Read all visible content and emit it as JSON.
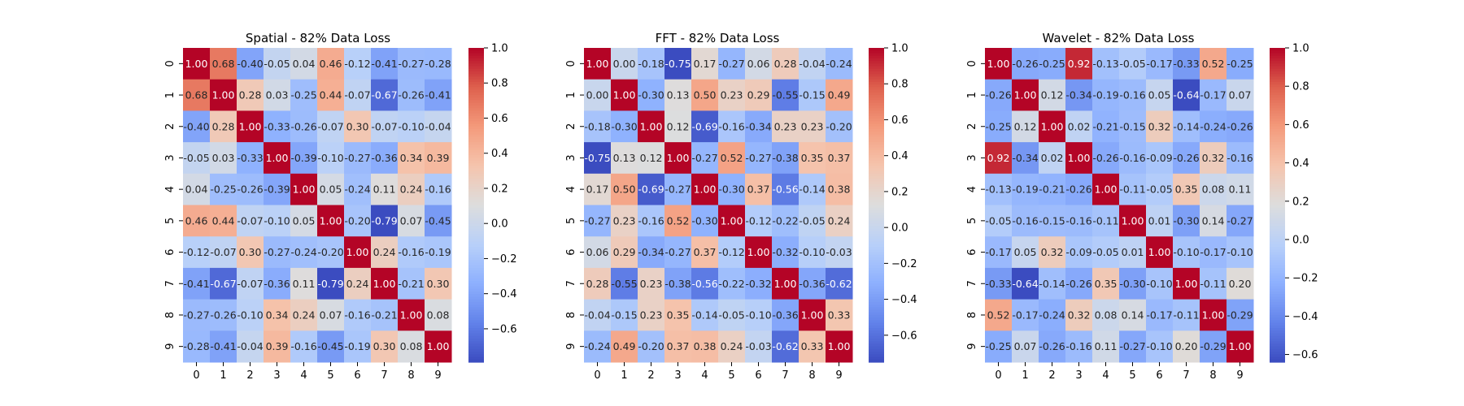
{
  "chart_data": [
    {
      "type": "heatmap",
      "title": "Spatial - 82% Data Loss",
      "x": [
        "0",
        "1",
        "2",
        "3",
        "4",
        "5",
        "6",
        "7",
        "8",
        "9"
      ],
      "y": [
        "0",
        "1",
        "2",
        "3",
        "4",
        "5",
        "6",
        "7",
        "8",
        "9"
      ],
      "values": [
        [
          1.0,
          0.68,
          -0.4,
          -0.05,
          0.04,
          0.46,
          -0.12,
          -0.41,
          -0.27,
          -0.28
        ],
        [
          0.68,
          1.0,
          0.28,
          0.03,
          -0.25,
          0.44,
          -0.07,
          -0.67,
          -0.26,
          -0.41
        ],
        [
          -0.4,
          0.28,
          1.0,
          -0.33,
          -0.26,
          -0.07,
          0.3,
          -0.07,
          -0.1,
          -0.04
        ],
        [
          -0.05,
          0.03,
          -0.33,
          1.0,
          -0.39,
          -0.1,
          -0.27,
          -0.36,
          0.34,
          0.39
        ],
        [
          0.04,
          -0.25,
          -0.26,
          -0.39,
          1.0,
          0.05,
          -0.24,
          0.11,
          0.24,
          -0.16
        ],
        [
          0.46,
          0.44,
          -0.07,
          -0.1,
          0.05,
          1.0,
          -0.2,
          -0.79,
          0.07,
          -0.45
        ],
        [
          -0.12,
          -0.07,
          0.3,
          -0.27,
          -0.24,
          -0.2,
          1.0,
          0.24,
          -0.16,
          -0.19
        ],
        [
          -0.41,
          -0.67,
          -0.07,
          -0.36,
          0.11,
          -0.79,
          0.24,
          1.0,
          -0.21,
          0.3
        ],
        [
          -0.27,
          -0.26,
          -0.1,
          0.34,
          0.24,
          0.07,
          -0.16,
          -0.21,
          1.0,
          0.08
        ],
        [
          -0.28,
          -0.41,
          -0.04,
          0.39,
          -0.16,
          -0.45,
          -0.19,
          0.3,
          0.08,
          1.0
        ]
      ],
      "colorbar": {
        "vmin": -0.79,
        "vmax": 1.0,
        "ticks": [
          -0.6,
          -0.4,
          -0.2,
          0.0,
          0.2,
          0.4,
          0.6,
          0.8,
          1.0
        ],
        "tick_labels": [
          "−0.6",
          "−0.4",
          "−0.2",
          "0.0",
          "0.2",
          "0.4",
          "0.6",
          "0.8",
          "1.0"
        ]
      },
      "colormap": "coolwarm",
      "annotation_format": "2 decimals"
    },
    {
      "type": "heatmap",
      "title": "FFT - 82% Data Loss",
      "x": [
        "0",
        "1",
        "2",
        "3",
        "4",
        "5",
        "6",
        "7",
        "8",
        "9"
      ],
      "y": [
        "0",
        "1",
        "2",
        "3",
        "4",
        "5",
        "6",
        "7",
        "8",
        "9"
      ],
      "values": [
        [
          1.0,
          0.0,
          -0.18,
          -0.75,
          0.17,
          -0.27,
          0.06,
          0.28,
          -0.04,
          -0.24
        ],
        [
          0.0,
          1.0,
          -0.3,
          0.13,
          0.5,
          0.23,
          0.29,
          -0.55,
          -0.15,
          0.49
        ],
        [
          -0.18,
          -0.3,
          1.0,
          0.12,
          -0.69,
          -0.16,
          -0.34,
          0.23,
          0.23,
          -0.2
        ],
        [
          -0.75,
          0.13,
          0.12,
          1.0,
          -0.27,
          0.52,
          -0.27,
          -0.38,
          0.35,
          0.37
        ],
        [
          0.17,
          0.5,
          -0.69,
          -0.27,
          1.0,
          -0.3,
          0.37,
          -0.56,
          -0.14,
          0.38
        ],
        [
          -0.27,
          0.23,
          -0.16,
          0.52,
          -0.3,
          1.0,
          -0.12,
          -0.22,
          -0.05,
          0.24
        ],
        [
          0.06,
          0.29,
          -0.34,
          -0.27,
          0.37,
          -0.12,
          1.0,
          -0.32,
          -0.1,
          -0.03
        ],
        [
          0.28,
          -0.55,
          0.23,
          -0.38,
          -0.56,
          -0.22,
          -0.32,
          1.0,
          -0.36,
          -0.62
        ],
        [
          -0.04,
          -0.15,
          0.23,
          0.35,
          -0.14,
          -0.05,
          -0.1,
          -0.36,
          1.0,
          0.33
        ],
        [
          -0.24,
          0.49,
          -0.2,
          0.37,
          0.38,
          0.24,
          -0.03,
          -0.62,
          0.33,
          1.0
        ]
      ],
      "colorbar": {
        "vmin": -0.75,
        "vmax": 1.0,
        "ticks": [
          -0.6,
          -0.4,
          -0.2,
          0.0,
          0.2,
          0.4,
          0.6,
          0.8,
          1.0
        ],
        "tick_labels": [
          "−0.6",
          "−0.4",
          "−0.2",
          "0.0",
          "0.2",
          "0.4",
          "0.6",
          "0.8",
          "1.0"
        ]
      },
      "colormap": "coolwarm",
      "annotation_format": "2 decimals"
    },
    {
      "type": "heatmap",
      "title": "Wavelet - 82% Data Loss",
      "x": [
        "0",
        "1",
        "2",
        "3",
        "4",
        "5",
        "6",
        "7",
        "8",
        "9"
      ],
      "y": [
        "0",
        "1",
        "2",
        "3",
        "4",
        "5",
        "6",
        "7",
        "8",
        "9"
      ],
      "values": [
        [
          1.0,
          -0.26,
          -0.25,
          0.92,
          -0.13,
          -0.05,
          -0.17,
          -0.33,
          0.52,
          -0.25
        ],
        [
          -0.26,
          1.0,
          0.12,
          -0.34,
          -0.19,
          -0.16,
          0.05,
          -0.64,
          -0.17,
          0.07
        ],
        [
          -0.25,
          0.12,
          1.0,
          0.02,
          -0.21,
          -0.15,
          0.32,
          -0.14,
          -0.24,
          -0.26
        ],
        [
          0.92,
          -0.34,
          0.02,
          1.0,
          -0.26,
          -0.16,
          -0.09,
          -0.26,
          0.32,
          -0.16
        ],
        [
          -0.13,
          -0.19,
          -0.21,
          -0.26,
          1.0,
          -0.11,
          -0.05,
          0.35,
          0.08,
          0.11
        ],
        [
          -0.05,
          -0.16,
          -0.15,
          -0.16,
          -0.11,
          1.0,
          0.01,
          -0.3,
          0.14,
          -0.27
        ],
        [
          -0.17,
          0.05,
          0.32,
          -0.09,
          -0.05,
          0.01,
          1.0,
          -0.1,
          -0.17,
          -0.1
        ],
        [
          -0.33,
          -0.64,
          -0.14,
          -0.26,
          0.35,
          -0.3,
          -0.1,
          1.0,
          -0.11,
          0.2
        ],
        [
          0.52,
          -0.17,
          -0.24,
          0.32,
          0.08,
          0.14,
          -0.17,
          -0.11,
          1.0,
          -0.29
        ],
        [
          -0.25,
          0.07,
          -0.26,
          -0.16,
          0.11,
          -0.27,
          -0.1,
          0.2,
          -0.29,
          1.0
        ]
      ],
      "colorbar": {
        "vmin": -0.64,
        "vmax": 1.0,
        "ticks": [
          -0.6,
          -0.4,
          -0.2,
          0.0,
          0.2,
          0.4,
          0.6,
          0.8,
          1.0
        ],
        "tick_labels": [
          "−0.6",
          "−0.4",
          "−0.2",
          "0.0",
          "0.2",
          "0.4",
          "0.6",
          "0.8",
          "1.0"
        ]
      },
      "colormap": "coolwarm",
      "annotation_format": "2 decimals"
    }
  ]
}
